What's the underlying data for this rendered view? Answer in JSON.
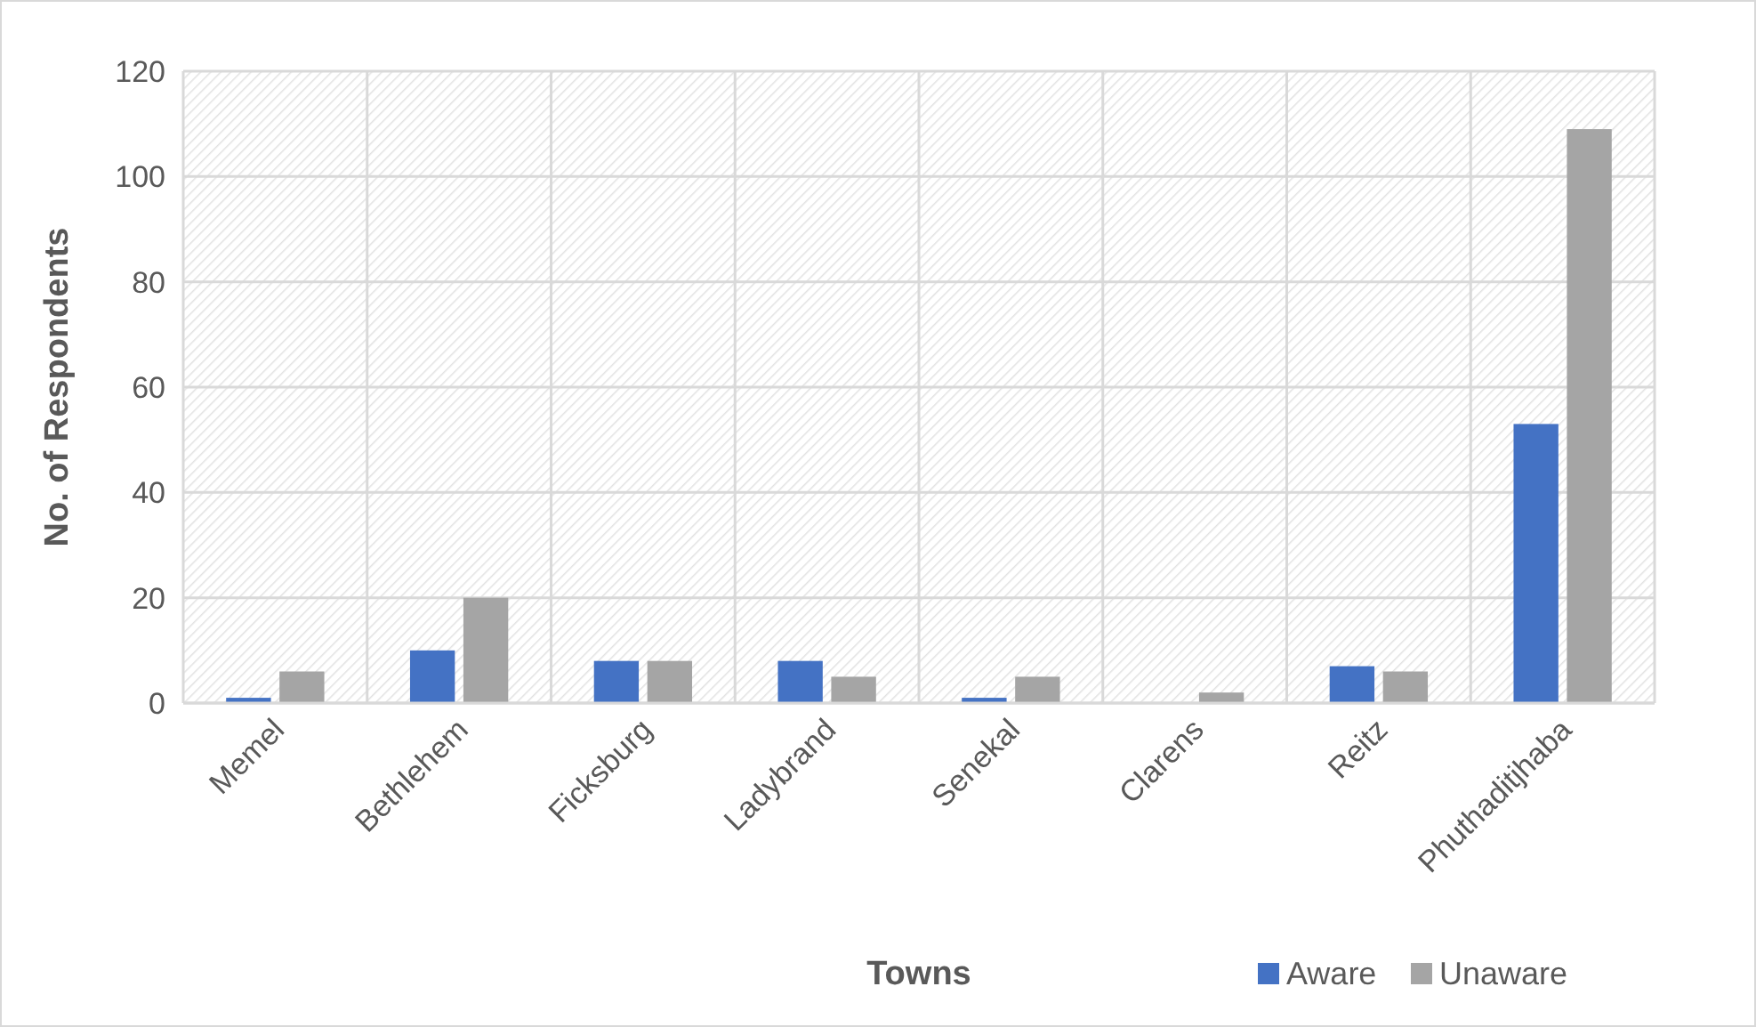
{
  "chart_data": {
    "type": "bar",
    "xlabel": "Towns",
    "ylabel": "No. of Respondents",
    "categories": [
      "Memel",
      "Bethlehem",
      "Ficksburg",
      "Ladybrand",
      "Senekal",
      "Clarens",
      "Reitz",
      "Phuthaditjhaba"
    ],
    "series": [
      {
        "name": "Aware",
        "color": "#4472c4",
        "values": [
          1,
          10,
          8,
          8,
          1,
          0,
          7,
          53
        ]
      },
      {
        "name": "Unaware",
        "color": "#a5a5a5",
        "values": [
          6,
          20,
          8,
          5,
          5,
          2,
          6,
          109
        ]
      }
    ],
    "ylim": [
      0,
      120
    ],
    "yticks": [
      0,
      20,
      40,
      60,
      80,
      100,
      120
    ],
    "grid": true,
    "legend": "bottom right"
  }
}
